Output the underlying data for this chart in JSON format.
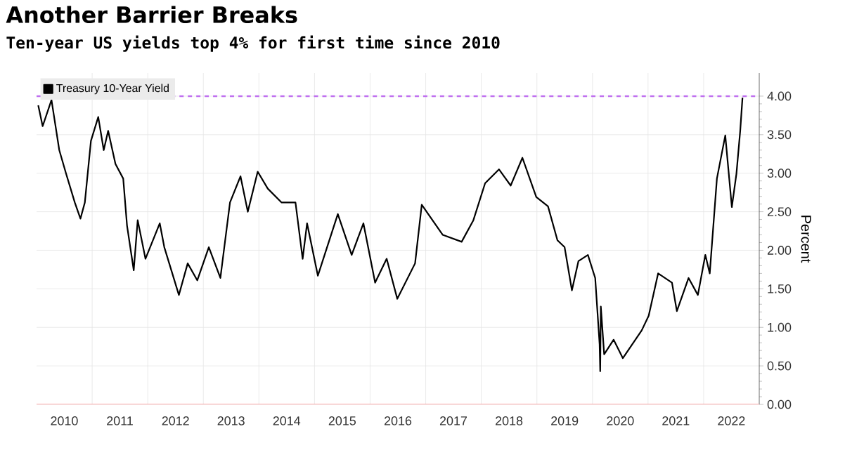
{
  "chart_data": {
    "type": "line",
    "title": "Another Barrier Breaks",
    "subtitle": "Ten-year US yields top 4% for first time since 2010",
    "ylabel": "Percent",
    "x": [
      "2010-01-12",
      "2010-02-10",
      "2010-04-09",
      "2010-05-30",
      "2010-07-13",
      "2010-09-09",
      "2010-10-16",
      "2010-11-14",
      "2010-12-24",
      "2011-02-10",
      "2011-03-18",
      "2011-04-16",
      "2011-06-03",
      "2011-07-24",
      "2011-08-18",
      "2011-10-01",
      "2011-10-27",
      "2011-12-17",
      "2012-03-20",
      "2012-04-19",
      "2012-07-24",
      "2012-09-20",
      "2012-11-22",
      "2013-02-06",
      "2013-04-23",
      "2013-06-25",
      "2013-09-02",
      "2013-10-20",
      "2013-12-24",
      "2014-02-28",
      "2014-05-30",
      "2014-08-29",
      "2014-10-15",
      "2014-11-13",
      "2015-01-23",
      "2015-06-03",
      "2015-09-02",
      "2015-11-18",
      "2016-02-03",
      "2016-04-19",
      "2016-06-28",
      "2016-10-23",
      "2016-12-06",
      "2017-04-23",
      "2017-08-25",
      "2017-11-10",
      "2018-01-26",
      "2018-04-27",
      "2018-07-13",
      "2018-09-28",
      "2018-12-28",
      "2019-03-15",
      "2019-05-16",
      "2019-07-02",
      "2019-08-19",
      "2019-10-01",
      "2019-12-02",
      "2020-01-19",
      "2020-02-17",
      "2020-02-21",
      "2020-02-25",
      "2020-03-18",
      "2020-05-19",
      "2020-07-19",
      "2020-11-20",
      "2021-01-05",
      "2021-03-08",
      "2021-06-07",
      "2021-07-09",
      "2021-09-24",
      "2021-11-24",
      "2022-01-12",
      "2022-02-10",
      "2022-03-29",
      "2022-05-23",
      "2022-07-05",
      "2022-08-04",
      "2022-08-29",
      "2022-09-13"
    ],
    "series": [
      {
        "name": "Treasury 10-Year Yield",
        "color": "#000000",
        "values": [
          3.88,
          3.61,
          3.95,
          3.3,
          3.0,
          2.62,
          2.41,
          2.62,
          3.42,
          3.73,
          3.3,
          3.55,
          3.12,
          2.93,
          2.32,
          1.74,
          2.39,
          1.89,
          2.35,
          2.04,
          1.42,
          1.83,
          1.61,
          2.04,
          1.64,
          2.62,
          2.96,
          2.5,
          3.02,
          2.8,
          2.62,
          2.62,
          1.89,
          2.35,
          1.67,
          2.47,
          1.94,
          2.35,
          1.58,
          1.89,
          1.37,
          1.83,
          2.59,
          2.2,
          2.11,
          2.39,
          2.87,
          3.05,
          2.84,
          3.2,
          2.69,
          2.57,
          2.13,
          2.04,
          1.48,
          1.86,
          1.94,
          1.64,
          0.78,
          0.43,
          1.27,
          0.65,
          0.84,
          0.6,
          0.96,
          1.15,
          1.7,
          1.58,
          1.21,
          1.64,
          1.42,
          1.94,
          1.7,
          2.93,
          3.49,
          2.56,
          2.99,
          3.55,
          3.98
        ]
      }
    ],
    "xlim": [
      "2010-01-01",
      "2023-01-01"
    ],
    "xticks": [
      {
        "value": "2010-07-02",
        "label": "2010"
      },
      {
        "value": "2011-07-02",
        "label": "2011"
      },
      {
        "value": "2012-07-02",
        "label": "2012"
      },
      {
        "value": "2013-07-02",
        "label": "2013"
      },
      {
        "value": "2014-07-02",
        "label": "2014"
      },
      {
        "value": "2015-07-02",
        "label": "2015"
      },
      {
        "value": "2016-07-02",
        "label": "2016"
      },
      {
        "value": "2017-07-02",
        "label": "2017"
      },
      {
        "value": "2018-07-02",
        "label": "2018"
      },
      {
        "value": "2019-07-02",
        "label": "2019"
      },
      {
        "value": "2020-07-02",
        "label": "2020"
      },
      {
        "value": "2021-07-02",
        "label": "2021"
      },
      {
        "value": "2022-07-02",
        "label": "2022"
      },
      {
        "value": "2011-01-01",
        "label": null
      },
      {
        "value": "2012-01-01",
        "label": null
      },
      {
        "value": "2013-01-01",
        "label": null
      },
      {
        "value": "2014-01-01",
        "label": null
      },
      {
        "value": "2015-01-01",
        "label": null
      },
      {
        "value": "2016-01-01",
        "label": null
      },
      {
        "value": "2017-01-01",
        "label": null
      },
      {
        "value": "2018-01-01",
        "label": null
      },
      {
        "value": "2019-01-01",
        "label": null
      },
      {
        "value": "2020-01-01",
        "label": null
      },
      {
        "value": "2021-01-01",
        "label": null
      },
      {
        "value": "2022-01-01",
        "label": null
      }
    ],
    "ylim": [
      0,
      4.3
    ],
    "yticks": [
      {
        "value": 0,
        "label": "0.00"
      },
      {
        "value": 0.5,
        "label": "0.50"
      },
      {
        "value": 1,
        "label": "1.00"
      },
      {
        "value": 1.5,
        "label": "1.50"
      },
      {
        "value": 2,
        "label": "2.00"
      },
      {
        "value": 2.5,
        "label": "2.50"
      },
      {
        "value": 3,
        "label": "3.00"
      },
      {
        "value": 3.5,
        "label": "3.50"
      },
      {
        "value": 4,
        "label": "4.00"
      }
    ],
    "ref_lines": [
      {
        "axis": "y",
        "value": 4,
        "color": "#c070f0",
        "line_style": "dashed"
      }
    ],
    "grid": true,
    "legend": "top left",
    "marker": "none",
    "line_style": "solid"
  }
}
